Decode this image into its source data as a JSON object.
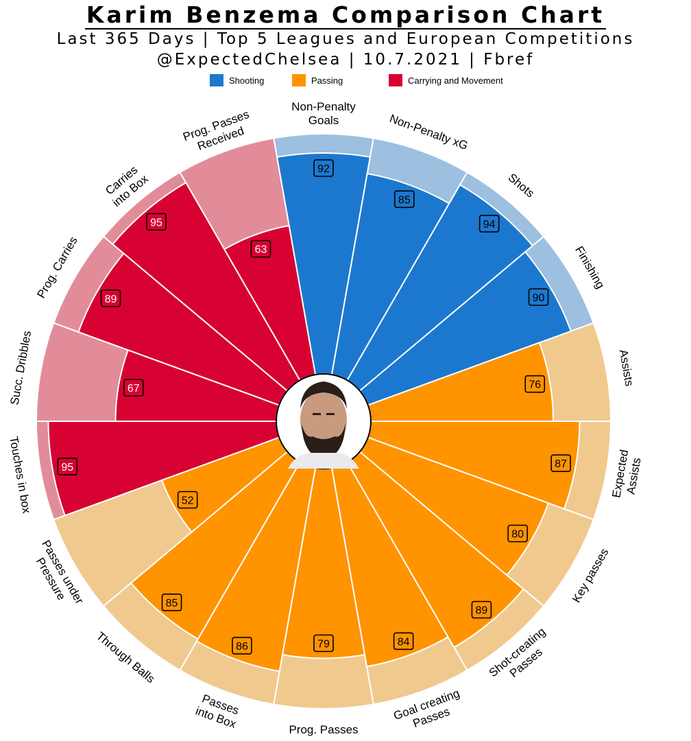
{
  "header": {
    "title": "Karim Benzema Comparison Chart",
    "subtitle1": "Last 365 Days | Top 5 Leagues and European Competitions",
    "subtitle2": "@ExpectedChelsea | 10.7.2021 | Fbref"
  },
  "legend": [
    {
      "name": "Shooting",
      "color": "#1c78cf"
    },
    {
      "name": "Passing",
      "color": "#ff9300"
    },
    {
      "name": "Carrying and Movement",
      "color": "#d70232"
    }
  ],
  "colors": {
    "Shooting": {
      "main": "#1c78cf",
      "light": "#9dbfe0",
      "badge_text": "#000000"
    },
    "Passing": {
      "main": "#ff9300",
      "light": "#f0c98f",
      "badge_text": "#000000"
    },
    "Carrying and Movement": {
      "main": "#d70232",
      "light": "#e28c9a",
      "badge_text": "#ffffff"
    }
  },
  "chart_data": {
    "type": "pie",
    "subtype": "radial-bar (pizza) percentile chart",
    "value_range": [
      0,
      100
    ],
    "center_image": "player-photo",
    "slices": [
      {
        "label": "Non-Penalty Goals",
        "value": 92,
        "group": "Shooting"
      },
      {
        "label": "Non-Penalty xG",
        "value": 85,
        "group": "Shooting"
      },
      {
        "label": "Shots",
        "value": 94,
        "group": "Shooting"
      },
      {
        "label": "Finishing",
        "value": 90,
        "group": "Shooting"
      },
      {
        "label": "Assists",
        "value": 76,
        "group": "Passing"
      },
      {
        "label": "Expected Assists",
        "value": 87,
        "group": "Passing"
      },
      {
        "label": "Key passes",
        "value": 80,
        "group": "Passing"
      },
      {
        "label": "Shot-creating Passes",
        "value": 89,
        "group": "Passing"
      },
      {
        "label": "Goal creating Passes",
        "value": 84,
        "group": "Passing"
      },
      {
        "label": "Prog. Passes",
        "value": 79,
        "group": "Passing"
      },
      {
        "label": "Passes into Box",
        "value": 86,
        "group": "Passing"
      },
      {
        "label": "Through Balls",
        "value": 85,
        "group": "Passing"
      },
      {
        "label": "Passes under Pressure",
        "value": 52,
        "group": "Passing"
      },
      {
        "label": "Touches in box",
        "value": 95,
        "group": "Carrying and Movement"
      },
      {
        "label": "Succ. Dribbles",
        "value": 67,
        "group": "Carrying and Movement"
      },
      {
        "label": "Prog. Carries",
        "value": 89,
        "group": "Carrying and Movement"
      },
      {
        "label": "Carries into Box",
        "value": 95,
        "group": "Carrying and Movement"
      },
      {
        "label": "Prog. Passes Received",
        "value": 63,
        "group": "Carrying and Movement"
      }
    ]
  }
}
